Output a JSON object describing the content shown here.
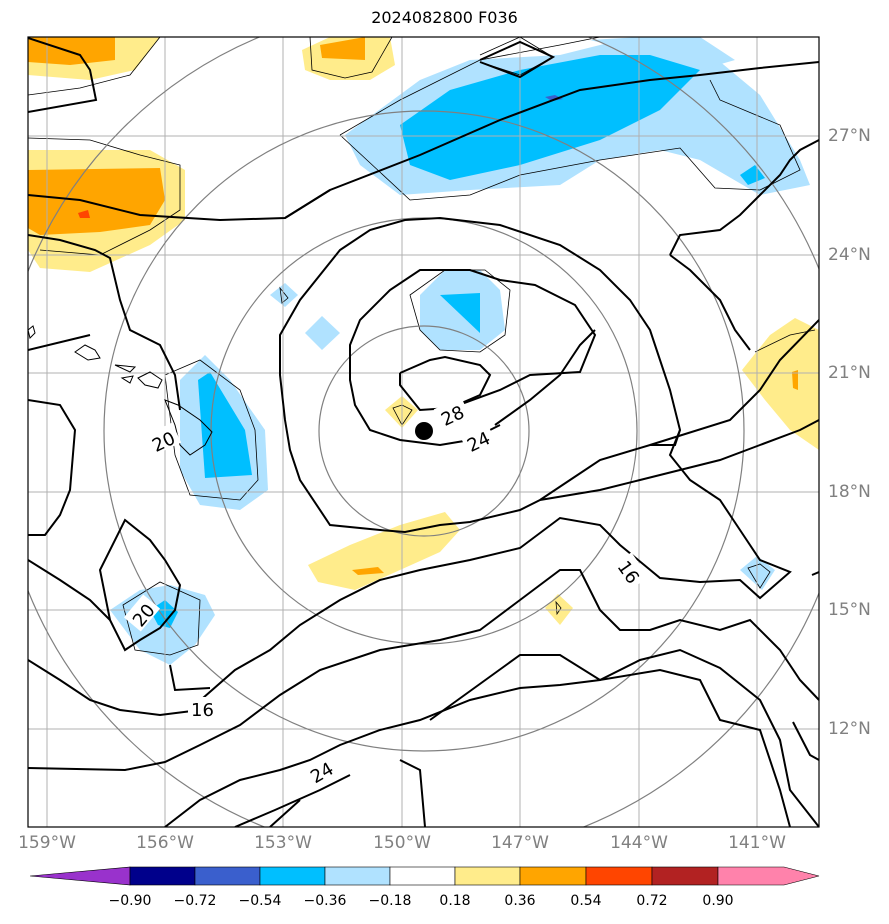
{
  "title": "2024082800 F036",
  "map": {
    "lon_ticks": [
      "159°W",
      "156°W",
      "153°W",
      "150°W",
      "147°W",
      "144°W",
      "141°W"
    ],
    "lat_ticks": [
      "27°N",
      "24°N",
      "21°N",
      "18°N",
      "15°N",
      "12°N"
    ],
    "contour_labels": [
      "28",
      "24",
      "20",
      "16",
      "20",
      "16",
      "24"
    ],
    "storm_marker": "storm-center"
  },
  "colorbar": {
    "labels": [
      "−0.90",
      "−0.72",
      "−0.54",
      "−0.36",
      "−0.18",
      "0.18",
      "0.36",
      "0.54",
      "0.72",
      "0.90"
    ],
    "colors": [
      "#9932cc",
      "#00008b",
      "#3a5fcd",
      "#00bfff",
      "#b0e2ff",
      "#ffffff",
      "#ffec8b",
      "#ffa500",
      "#ff4500",
      "#b22222",
      "#ff82ab"
    ]
  }
}
